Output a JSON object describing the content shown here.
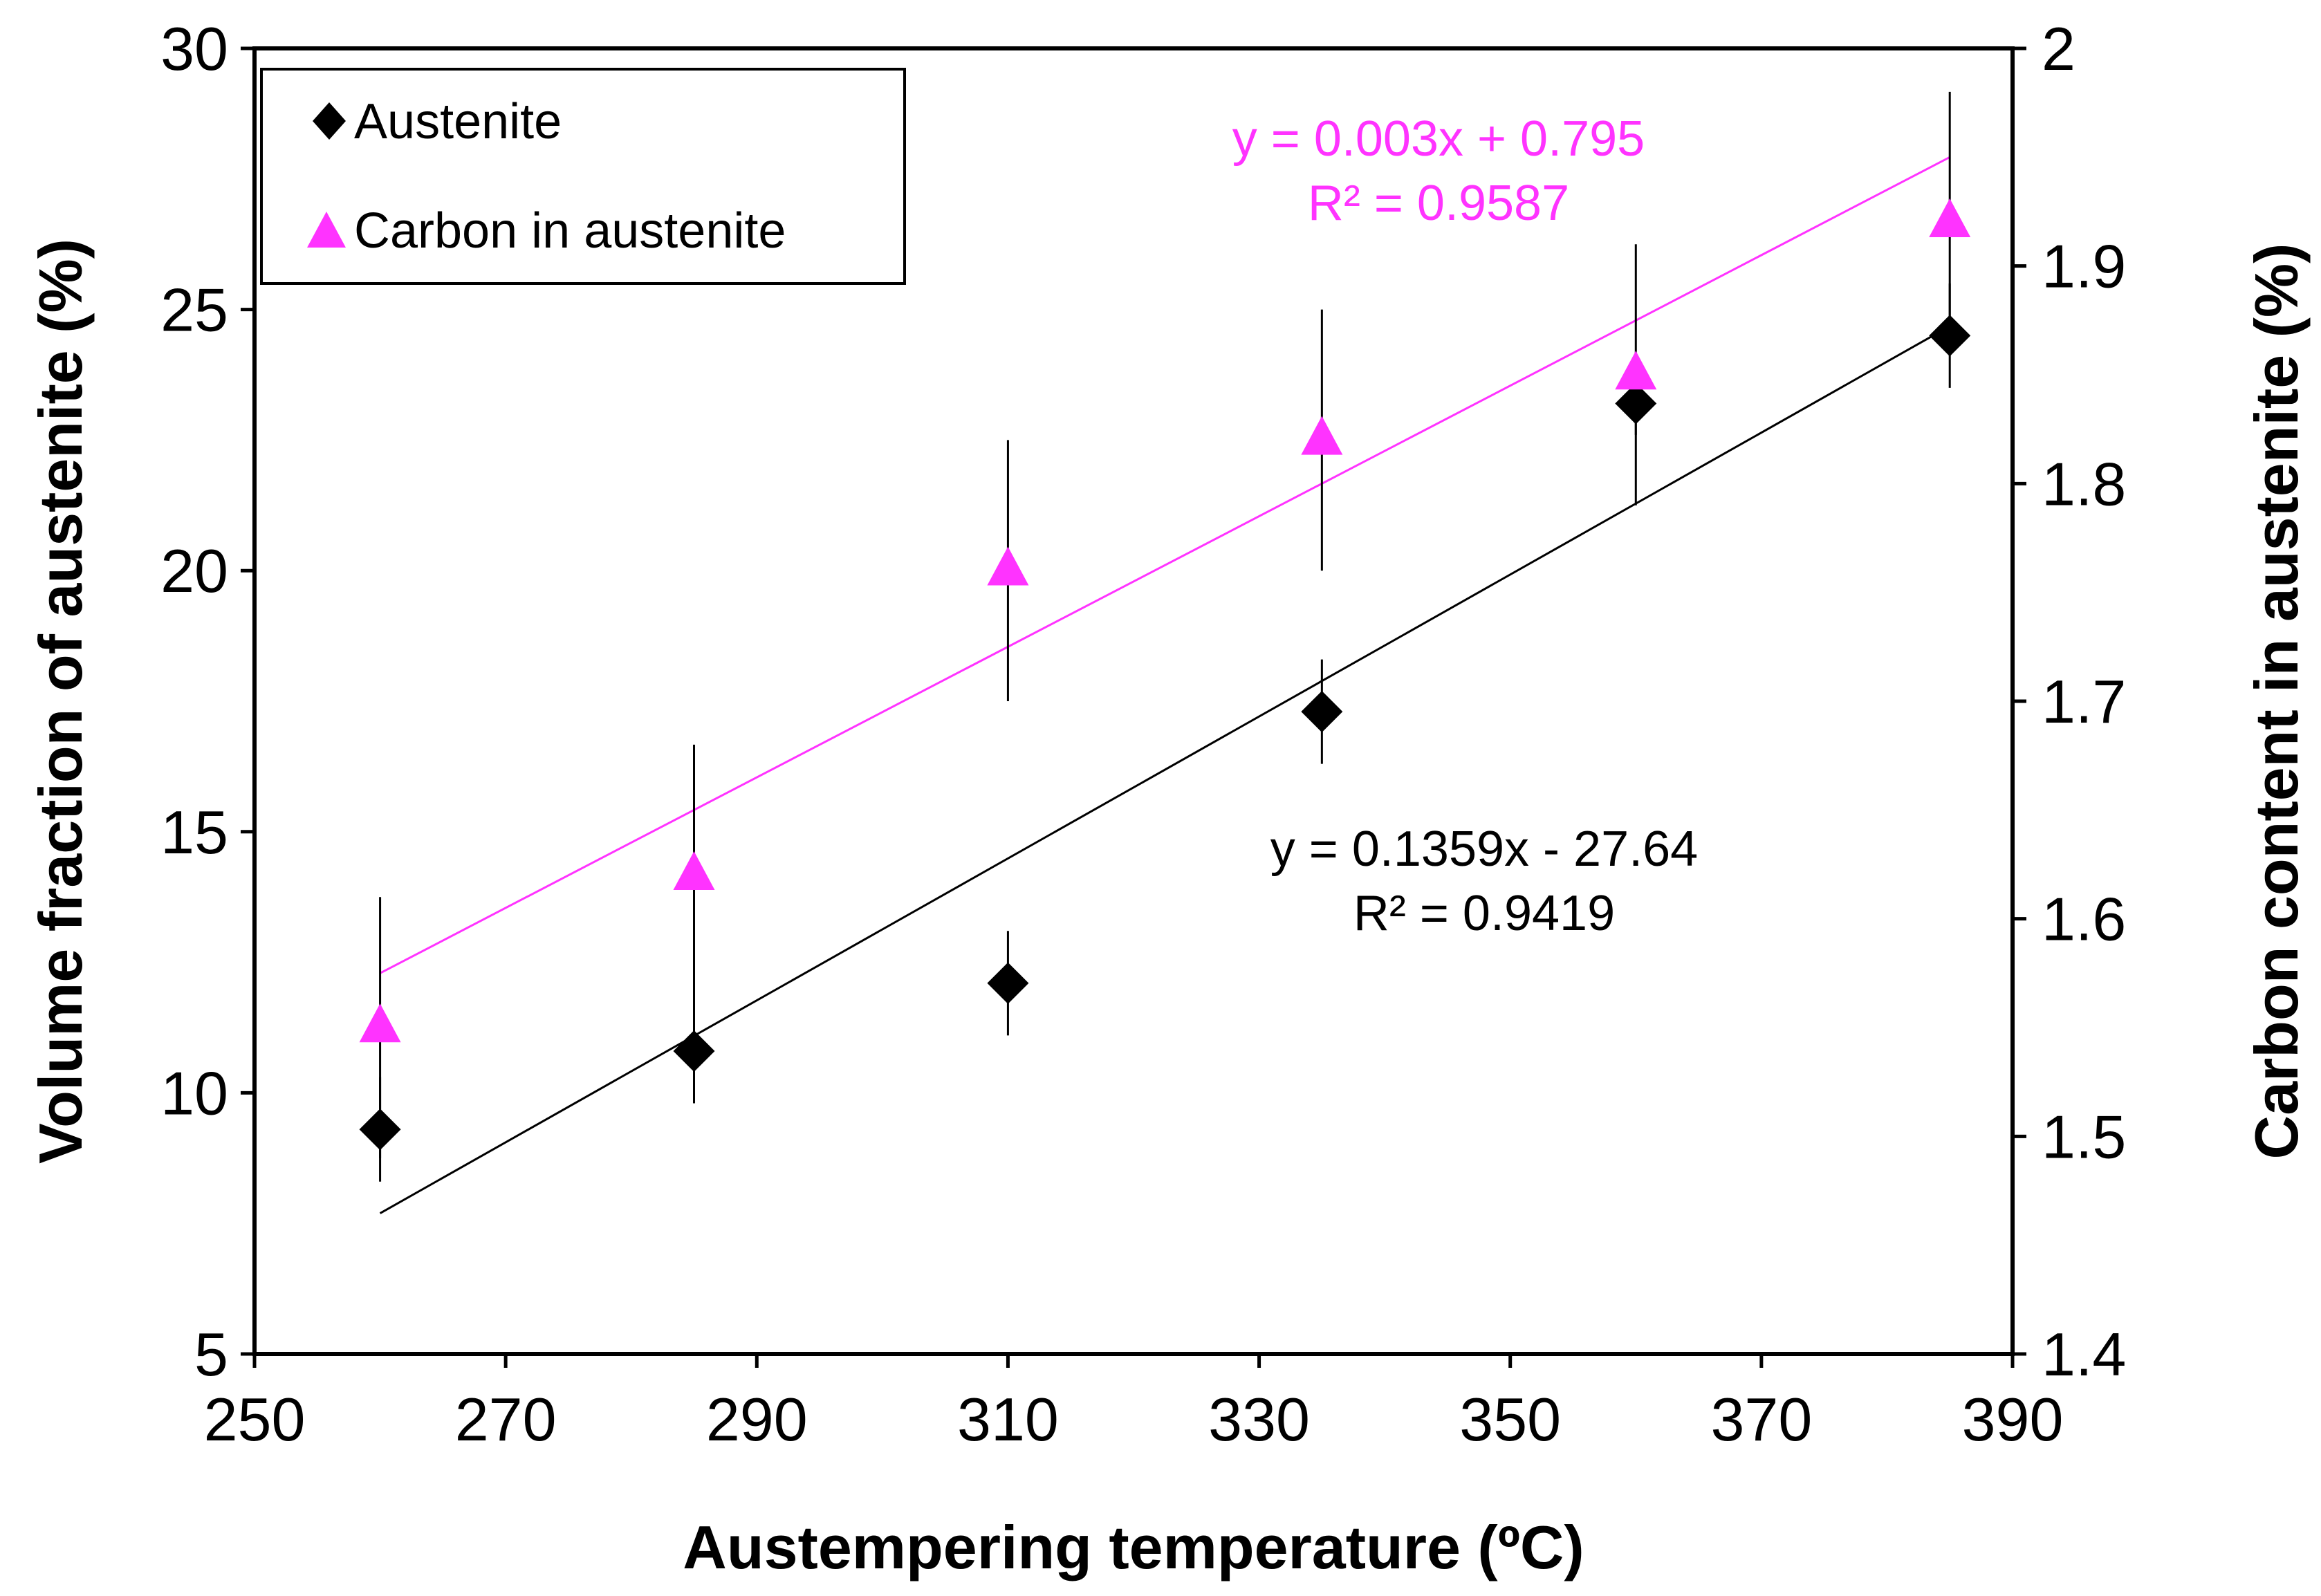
{
  "chart_data": {
    "type": "scatter",
    "title": "",
    "xlabel": "Austempering temperature (ºC)",
    "ylabel": "Volume fraction of austenite (%)",
    "y2label": "Carbon content in austenite (%)",
    "xlim": [
      250,
      390
    ],
    "ylim": [
      5,
      30
    ],
    "y2lim": [
      1.4,
      2.0
    ],
    "x_ticks": [
      250,
      270,
      290,
      310,
      330,
      350,
      370,
      390
    ],
    "y_ticks": [
      5,
      10,
      15,
      20,
      25,
      30
    ],
    "y2_ticks": [
      1.4,
      1.5,
      1.6,
      1.7,
      1.8,
      1.9,
      2.0
    ],
    "x_tick_labels": [
      "250",
      "270",
      "290",
      "310",
      "330",
      "350",
      "370",
      "390"
    ],
    "y_tick_labels": [
      "5",
      "10",
      "15",
      "20",
      "25",
      "30"
    ],
    "y2_tick_labels": [
      "1.4",
      "1.5",
      "1.6",
      "1.7",
      "1.8",
      "1.9",
      "2"
    ],
    "grid": false,
    "legend_position": "top-left",
    "series": [
      {
        "name": "Austenite",
        "axis": "left",
        "marker": "diamond",
        "color": "#000000",
        "x": [
          260,
          285,
          310,
          335,
          360,
          385
        ],
        "y": [
          9.3,
          10.8,
          12.1,
          17.3,
          23.2,
          24.5
        ],
        "err": [
          1.0,
          1.0,
          1.0,
          1.0,
          0.6,
          1.0
        ],
        "trendline": {
          "slope": 0.1359,
          "intercept": -27.64,
          "x_range": [
            260,
            385
          ]
        }
      },
      {
        "name": "Carbon in austenite",
        "axis": "right",
        "marker": "triangle",
        "color": "#FF33FF",
        "x": [
          260,
          285,
          310,
          335,
          360,
          385
        ],
        "y": [
          1.55,
          1.62,
          1.76,
          1.82,
          1.85,
          1.92
        ],
        "err": [
          0.06,
          0.06,
          0.06,
          0.06,
          0.06,
          0.06
        ],
        "trendline": {
          "slope": 0.003,
          "intercept": 0.795,
          "x_range": [
            260,
            385
          ]
        }
      }
    ],
    "annotations": {
      "carbon_eq_line1": "y = 0.003x + 0.795",
      "carbon_eq_line2": "R² = 0.9587",
      "austenite_eq_line1": "y = 0.1359x - 27.64",
      "austenite_eq_line2": "R² = 0.9419"
    },
    "colors": {
      "austenite": "#000000",
      "carbon": "#FF33FF",
      "axis": "#000000"
    }
  }
}
